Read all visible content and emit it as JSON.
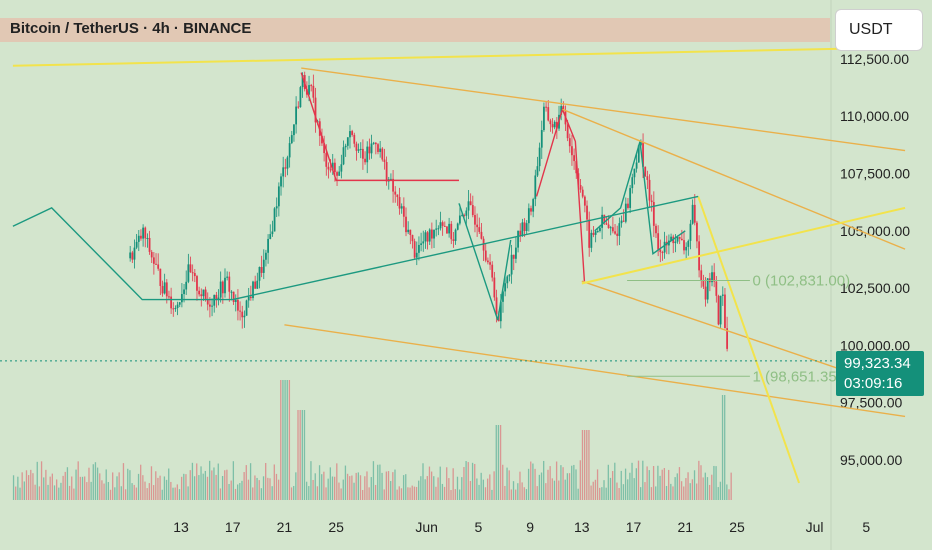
{
  "header": {
    "title": "Bitcoin / TetherUS · 4h · BINANCE",
    "currency": "USDT"
  },
  "colors": {
    "background": "#d3e5cd",
    "up": "#14907a",
    "down": "#e2354b",
    "yellow_line": "#f2e34c",
    "orange_line": "#eab04a",
    "teal_line": "#1c9980",
    "red_line": "#e2354b",
    "fib_line": "#8fbf85"
  },
  "chart_data": {
    "type": "candlestick",
    "symbol": "Bitcoin / TetherUS",
    "interval": "4h",
    "exchange": "BINANCE",
    "y_axis": {
      "ticks": [
        95000,
        97500,
        100000,
        102500,
        105000,
        107500,
        110000,
        112500
      ],
      "tick_labels": [
        "95,000.00",
        "97,500.00",
        "100,000.00",
        "102,500.00",
        "105,000.00",
        "107,500.00",
        "110,000.00",
        "112,500.00"
      ],
      "range": [
        93800,
        114200
      ]
    },
    "x_axis": {
      "tick_labels": [
        "13",
        "17",
        "21",
        "25",
        "Jun",
        "5",
        "9",
        "13",
        "17",
        "21",
        "25",
        "Jul",
        "5"
      ],
      "tick_days": [
        13,
        17,
        21,
        25,
        32,
        36,
        40,
        44,
        48,
        52,
        56,
        62,
        66
      ],
      "day_unit": "days counted from 1 May"
    },
    "last_price": "99,323.34",
    "last_price_value": 99323.34,
    "countdown": "03:09:16",
    "fib_levels": [
      {
        "label": "0 (102,831.00)",
        "value": 102831
      },
      {
        "label": "1 (98,651.35)",
        "value": 98651.35
      }
    ],
    "price_path": [
      [
        9.0,
        103800
      ],
      [
        10.0,
        104900
      ],
      [
        11.5,
        102600
      ],
      [
        12.5,
        101600
      ],
      [
        13.5,
        103200
      ],
      [
        15.0,
        101800
      ],
      [
        16.5,
        102800
      ],
      [
        17.5,
        101200
      ],
      [
        18.5,
        102500
      ],
      [
        19.5,
        103800
      ],
      [
        20.5,
        106800
      ],
      [
        21.5,
        109200
      ],
      [
        22.3,
        111600
      ],
      [
        23.0,
        111000
      ],
      [
        24.0,
        108200
      ],
      [
        25.0,
        107400
      ],
      [
        26.0,
        109600
      ],
      [
        27.0,
        108000
      ],
      [
        28.0,
        109000
      ],
      [
        29.0,
        107200
      ],
      [
        30.0,
        105800
      ],
      [
        31.0,
        104100
      ],
      [
        32.0,
        104700
      ],
      [
        33.0,
        105500
      ],
      [
        34.0,
        104700
      ],
      [
        35.0,
        106100
      ],
      [
        36.0,
        105300
      ],
      [
        37.0,
        102800
      ],
      [
        37.5,
        101100
      ],
      [
        38.0,
        102800
      ],
      [
        39.0,
        104700
      ],
      [
        40.0,
        105900
      ],
      [
        40.5,
        108000
      ],
      [
        41.0,
        110200
      ],
      [
        41.8,
        109500
      ],
      [
        42.5,
        110300
      ],
      [
        43.0,
        108800
      ],
      [
        44.0,
        106500
      ],
      [
        44.5,
        104500
      ],
      [
        45.5,
        105400
      ],
      [
        46.5,
        104800
      ],
      [
        47.5,
        106200
      ],
      [
        48.0,
        107900
      ],
      [
        48.5,
        108700
      ],
      [
        49.0,
        106900
      ],
      [
        50.0,
        104000
      ],
      [
        51.0,
        104700
      ],
      [
        52.0,
        104200
      ],
      [
        52.5,
        105800
      ],
      [
        53.0,
        103600
      ],
      [
        53.5,
        102300
      ],
      [
        54.0,
        103300
      ],
      [
        54.5,
        101200
      ],
      [
        54.8,
        102500
      ],
      [
        55.0,
        100700
      ],
      [
        55.3,
        99300
      ]
    ],
    "volume_note": "histogram of volume at bottom; spikes near 21 May and 22 Jun",
    "trendlines": [
      {
        "name": "orange-resistance-upper",
        "color": "orange",
        "from": [
          22.3,
          112100
        ],
        "to": [
          69.0,
          108500
        ]
      },
      {
        "name": "orange-resistance-lower",
        "color": "orange",
        "from": [
          42.5,
          110300
        ],
        "to": [
          69.0,
          104200
        ]
      },
      {
        "name": "orange-support-lower",
        "color": "orange",
        "from": [
          21.0,
          100900
        ],
        "to": [
          69.0,
          96900
        ]
      },
      {
        "name": "orange-channel-bottom",
        "color": "orange",
        "from": [
          44.0,
          102800
        ],
        "to": [
          69.0,
          98000
        ]
      },
      {
        "name": "yellow-top",
        "color": "yellow",
        "from": [
          0.0,
          112200
        ],
        "to": [
          69.0,
          113000
        ]
      },
      {
        "name": "yellow-rising",
        "color": "yellow",
        "from": [
          44.0,
          102700
        ],
        "to": [
          69.0,
          106000
        ]
      },
      {
        "name": "yellow-steep-fall",
        "color": "yellow",
        "from": [
          53.0,
          106500
        ],
        "to": [
          60.8,
          94000
        ]
      },
      {
        "name": "teal-rising",
        "color": "teal",
        "from": [
          17.0,
          102000
        ],
        "to": [
          53.0,
          106500
        ]
      }
    ]
  }
}
